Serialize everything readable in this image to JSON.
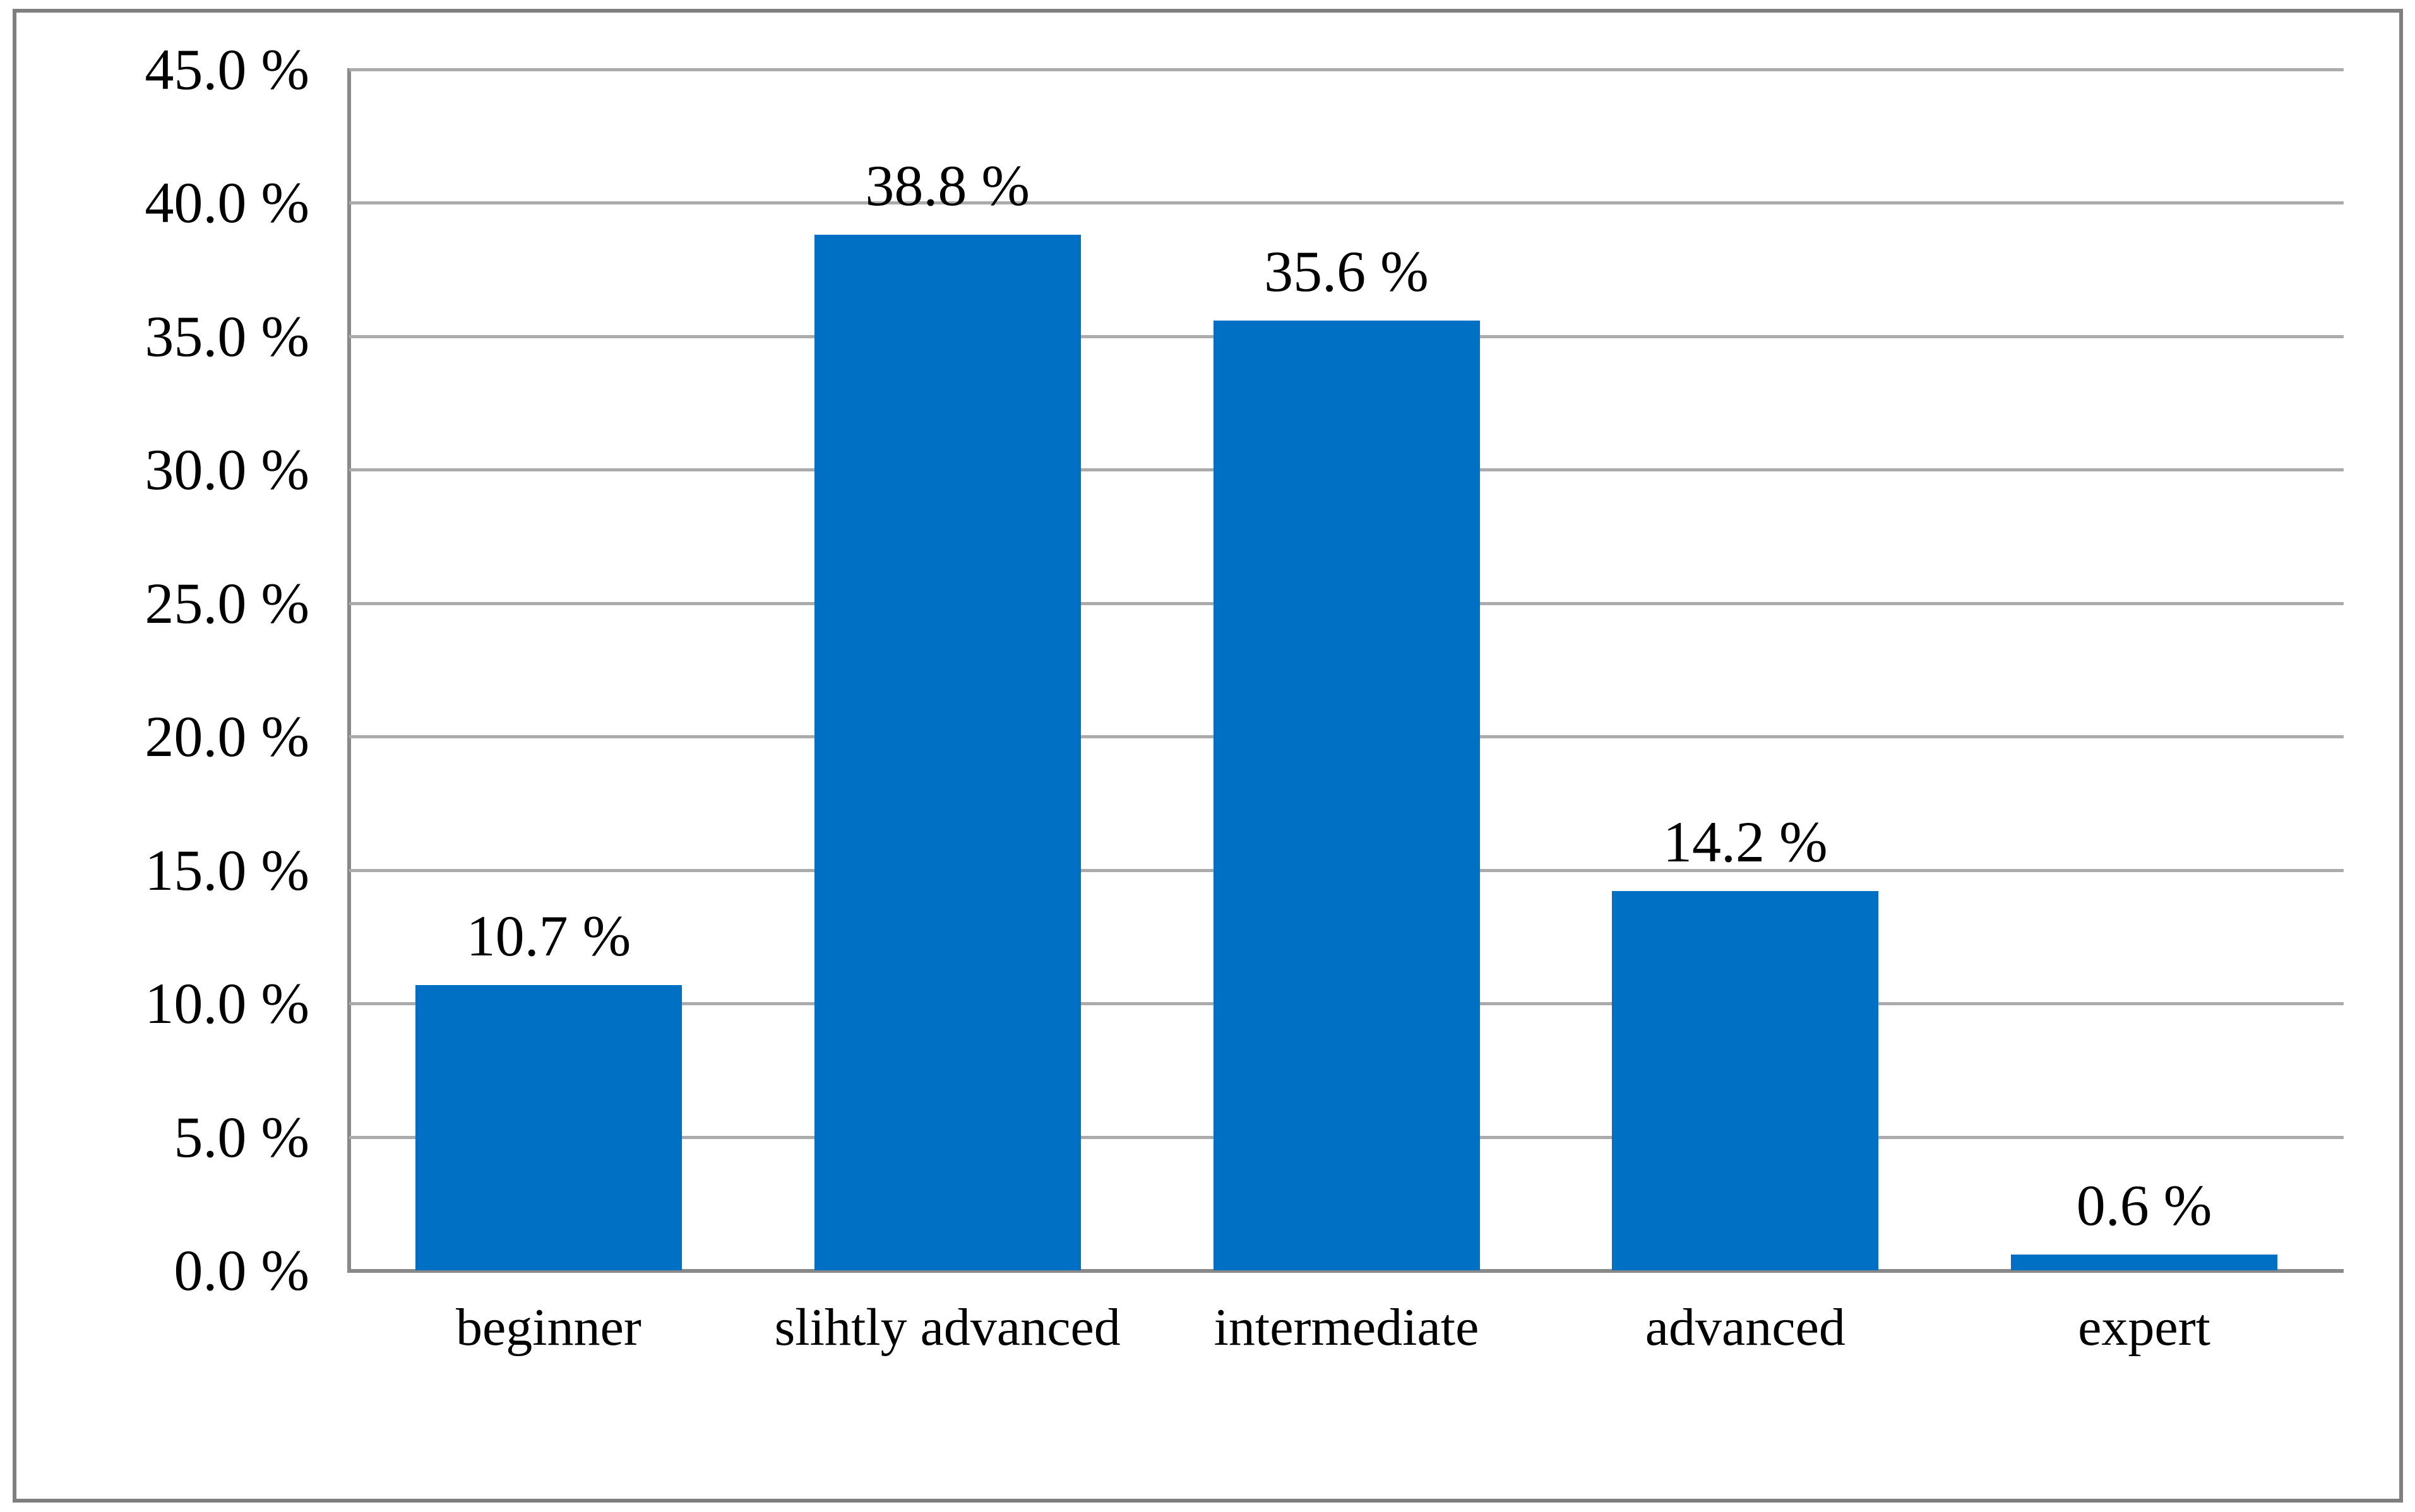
{
  "chart_data": {
    "type": "bar",
    "title": "",
    "xlabel": "",
    "ylabel": "",
    "categories": [
      "beginner",
      "slihtly advanced",
      "intermediate",
      "advanced",
      "expert"
    ],
    "values": [
      10.7,
      38.8,
      35.6,
      14.2,
      0.6
    ],
    "data_labels": [
      "10.7 %",
      "38.8 %",
      "35.6 %",
      "14.2 %",
      "0.6 %"
    ],
    "y_tick_labels": [
      "0.0 %",
      "5.0 %",
      "10.0 %",
      "15.0 %",
      "20.0 %",
      "25.0 %",
      "30.0 %",
      "35.0 %",
      "40.0 %",
      "45.0 %"
    ],
    "ylim": [
      0,
      45
    ],
    "y_step": 5,
    "grid": "horizontal",
    "legend": "none",
    "colors": {
      "bar": "#0070C4",
      "gridline": "#ABABAB",
      "axis": "#898989",
      "frame_border": "#7F7F7F",
      "text": "#000000",
      "background": "#FFFFFF"
    }
  }
}
